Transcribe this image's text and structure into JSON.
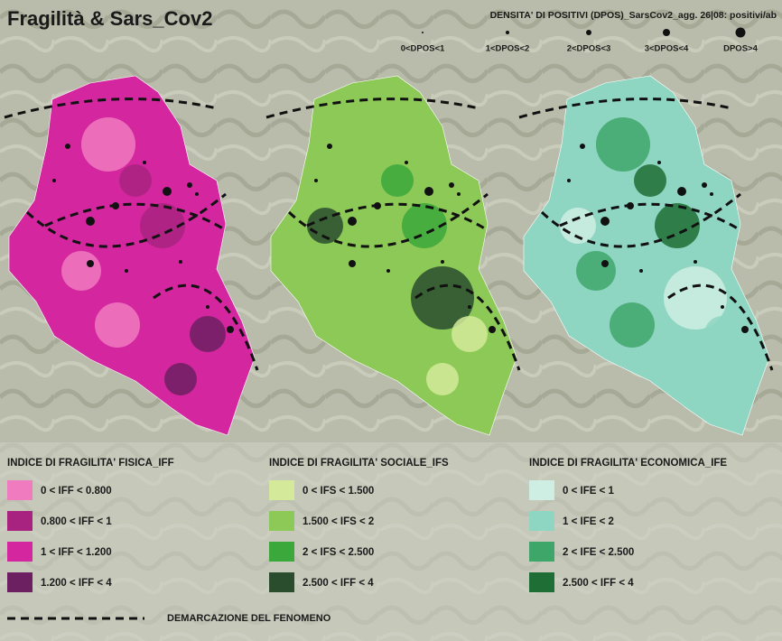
{
  "title": "Fragilità & Sars_Cov2",
  "dpos_legend": {
    "title": "DENSITA' DI POSITIVI (DPOS)_SarsCov2_agg. 26|08: positivi/ab",
    "items": [
      "0<DPOS<1",
      "1<DPOS<2",
      "2<DPOS<3",
      "3<DPOS<4",
      "DPOS>4"
    ]
  },
  "legends": [
    {
      "title": "INDICE DI FRAGILITA' FISICA_IFF",
      "items": [
        {
          "label": "0 < IFF < 0.800",
          "color": "#f07bbf"
        },
        {
          "label": "0.800 < IFF < 1",
          "color": "#a8237f"
        },
        {
          "label": "1 < IFF < 1.200",
          "color": "#d4279f"
        },
        {
          "label": "1.200 < IFF < 4",
          "color": "#6c2061"
        }
      ]
    },
    {
      "title": "INDICE DI FRAGILITA' SOCIALE_IFS",
      "items": [
        {
          "label": "0 < IFS < 1.500",
          "color": "#d4ea9a"
        },
        {
          "label": "1.500 < IFS < 2",
          "color": "#8dc956"
        },
        {
          "label": "2 < IFS < 2.500",
          "color": "#3aa83a"
        },
        {
          "label": "2.500 < IFF < 4",
          "color": "#2a4d2e"
        }
      ]
    },
    {
      "title": "INDICE DI FRAGILITA' ECONOMICA_IFE",
      "items": [
        {
          "label": "0 < IFE < 1",
          "color": "#cfeee3"
        },
        {
          "label": "1 < IFE < 2",
          "color": "#8fd6c2"
        },
        {
          "label": "2 < IFE < 2.500",
          "color": "#3fa66a"
        },
        {
          "label": "2.500 < IFF < 4",
          "color": "#1f6e35"
        }
      ]
    }
  ],
  "demarcation": "DEMARCAZIONE DEL FENOMENO"
}
